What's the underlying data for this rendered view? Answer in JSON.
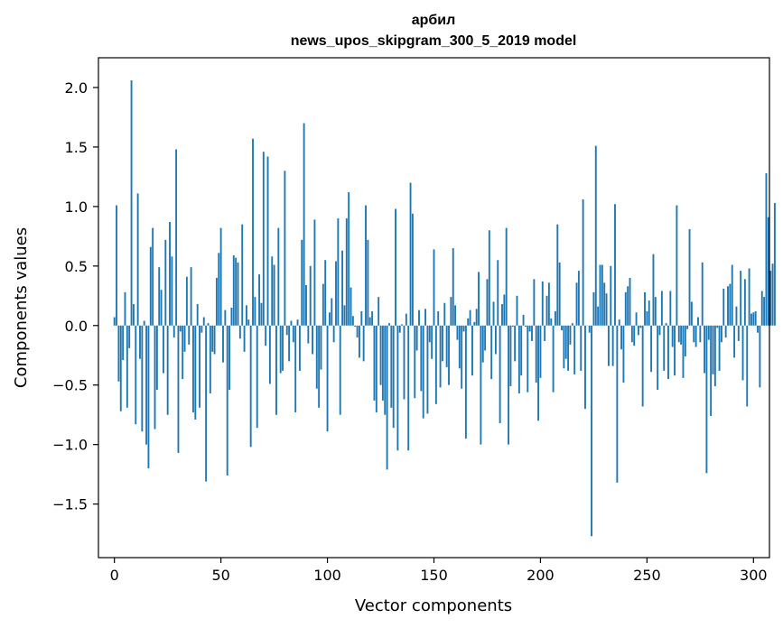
{
  "chart_data": {
    "type": "bar",
    "title": "арбил",
    "subtitle": "news_upos_skipgram_300_5_2019 model",
    "xlabel": "Vector components",
    "ylabel": "Components values",
    "xlim": [
      -7.5,
      307.5
    ],
    "ylim": [
      -1.95,
      2.25
    ],
    "xticks": [
      0,
      50,
      100,
      150,
      200,
      250,
      300
    ],
    "yticks": [
      -1.5,
      -1.0,
      -0.5,
      0.0,
      0.5,
      1.0,
      1.5,
      2.0
    ],
    "ytick_labels": [
      "−1.5",
      "−1.0",
      "−0.5",
      "0.0",
      "0.5",
      "1.0",
      "1.5",
      "2.0"
    ],
    "bar_color": "#1f77b4",
    "grid": false,
    "series": [
      {
        "values": [
          0.07,
          1.01,
          -0.47,
          -0.72,
          -0.29,
          0.28,
          -0.69,
          -0.19,
          2.06,
          0.18,
          -0.83,
          1.11,
          -0.28,
          -0.89,
          0.04,
          -1.0,
          -1.2,
          0.66,
          0.82,
          -0.87,
          -0.54,
          0.49,
          0.3,
          -0.4,
          0.72,
          -0.75,
          0.87,
          0.58,
          -0.1,
          1.48,
          -1.07,
          -0.05,
          -0.45,
          -0.22,
          0.41,
          -0.16,
          0.49,
          -0.73,
          -0.79,
          0.18,
          -0.69,
          -0.06,
          0.07,
          -1.31,
          0.02,
          -0.57,
          -0.22,
          -0.24,
          0.4,
          0.61,
          0.82,
          -0.31,
          0.13,
          -1.26,
          -0.54,
          0.15,
          0.59,
          0.57,
          0.53,
          -0.11,
          0.85,
          -0.22,
          0.17,
          0.05,
          -1.02,
          1.57,
          0.24,
          -0.86,
          0.43,
          0.19,
          1.46,
          -0.17,
          1.42,
          -0.49,
          0.58,
          0.51,
          -0.75,
          0.82,
          -0.4,
          -0.38,
          1.3,
          -0.08,
          -0.3,
          0.04,
          -0.14,
          -0.73,
          0.05,
          -0.38,
          0.72,
          1.7,
          0.34,
          -0.15,
          0.5,
          -0.24,
          0.89,
          -0.53,
          -0.69,
          -0.37,
          0.35,
          0.55,
          -0.89,
          0.11,
          0.23,
          -0.14,
          0.54,
          0.9,
          -0.75,
          0.63,
          0.17,
          0.9,
          1.12,
          0.32,
          0.08,
          -0.01,
          -0.1,
          -0.27,
          0.12,
          -0.3,
          1.01,
          0.72,
          0.07,
          0.12,
          -0.63,
          -0.73,
          0.24,
          -0.5,
          -0.63,
          -0.75,
          -1.21,
          0.02,
          -0.69,
          -0.86,
          0.98,
          -1.05,
          -0.06,
          0.01,
          -0.62,
          0.1,
          -1.05,
          1.2,
          0.94,
          -0.61,
          -0.21,
          0.13,
          -0.55,
          -0.78,
          0.14,
          -0.74,
          -0.14,
          -0.28,
          0.64,
          -0.66,
          0.12,
          -0.52,
          -0.3,
          0.19,
          -0.35,
          -0.5,
          0.24,
          0.65,
          0.17,
          -0.12,
          -0.36,
          -0.53,
          -0.05,
          -0.95,
          0.06,
          0.13,
          -0.42,
          0.03,
          0.14,
          0.45,
          -1.0,
          -0.31,
          -0.21,
          0.39,
          0.8,
          -0.45,
          0.2,
          -0.24,
          0.55,
          -0.82,
          0.18,
          0.26,
          0.82,
          -1.0,
          -0.51,
          -0.01,
          -0.3,
          0.25,
          -0.57,
          -0.42,
          0.09,
          -0.01,
          -0.56,
          -0.05,
          -0.13,
          0.39,
          -0.48,
          -0.8,
          -0.44,
          0.37,
          -0.13,
          0.25,
          0.36,
          0.06,
          -0.56,
          0.12,
          0.85,
          0.53,
          -0.04,
          -0.36,
          -0.28,
          -0.38,
          -0.16,
          0.02,
          -0.41,
          0.36,
          0.46,
          -0.38,
          1.06,
          -0.7,
          0.0,
          -0.06,
          -1.77,
          0.28,
          1.51,
          0.16,
          0.51,
          0.51,
          0.36,
          0.27,
          -0.34,
          0.5,
          -0.34,
          1.02,
          -1.32,
          0.05,
          -0.2,
          -0.48,
          0.28,
          0.33,
          0.4,
          -0.14,
          -0.17,
          0.11,
          -0.08,
          -0.02,
          -0.68,
          0.28,
          0.12,
          0.21,
          -0.39,
          0.6,
          0.24,
          -0.54,
          -0.08,
          0.29,
          -0.38,
          0.02,
          -0.45,
          0.29,
          -0.18,
          -0.42,
          1.01,
          -0.14,
          -0.16,
          -0.44,
          -0.26,
          -0.03,
          0.81,
          0.2,
          -0.14,
          -0.18,
          0.07,
          -0.14,
          0.53,
          -0.4,
          -1.24,
          -0.12,
          -0.76,
          -0.41,
          -0.51,
          -0.02,
          -0.38,
          -0.14,
          0.31,
          -0.1,
          0.33,
          0.35,
          0.51,
          -0.27,
          0.16,
          -0.13,
          0.46,
          -0.46,
          0.39,
          -0.68,
          0.48,
          0.1,
          0.11,
          0.12,
          -0.06,
          -0.52,
          0.29,
          0.24,
          1.28,
          0.91,
          0.46,
          0.52,
          1.03
        ]
      }
    ]
  }
}
